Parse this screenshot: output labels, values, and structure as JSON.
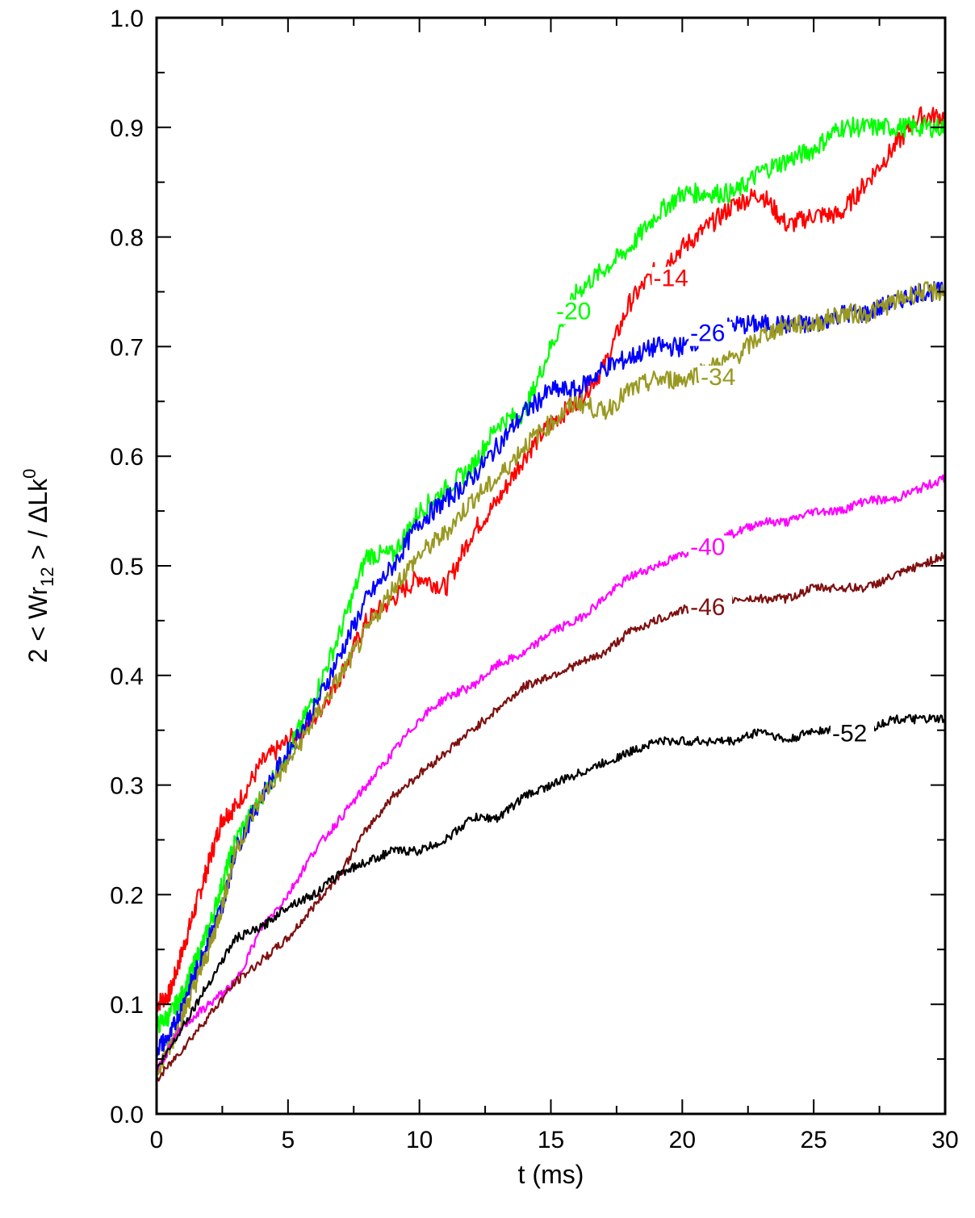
{
  "chart_data": {
    "type": "line",
    "xlabel": "t  (ms)",
    "ylabel": {
      "main": "2 < Wr",
      "subscript": "12",
      "after": " > / ΔLk",
      "superscript": "0"
    },
    "xlim": [
      0,
      30
    ],
    "ylim": [
      0,
      1
    ],
    "x_ticks": [
      0,
      5,
      10,
      15,
      20,
      25,
      30
    ],
    "y_ticks": [
      0.0,
      0.1,
      0.2,
      0.3,
      0.4,
      0.5,
      0.6,
      0.7,
      0.8,
      0.9,
      1.0
    ],
    "x_tick_labels": [
      "0",
      "5",
      "10",
      "15",
      "20",
      "25",
      "30"
    ],
    "y_tick_labels": [
      "0.0",
      "0.1",
      "0.2",
      "0.3",
      "0.4",
      "0.5",
      "0.6",
      "0.7",
      "0.8",
      "0.9",
      "1.0"
    ],
    "grid": false,
    "series": [
      {
        "name": "-14",
        "color": "#ff0000",
        "x": [
          0,
          0.5,
          1,
          1.5,
          2,
          2.5,
          3,
          4,
          5,
          6,
          7,
          8,
          9,
          10,
          11,
          12,
          13,
          14,
          15,
          16,
          17,
          18,
          19,
          20,
          21,
          22,
          23,
          24,
          25,
          26,
          27,
          28,
          29,
          30
        ],
        "y": [
          0.1,
          0.11,
          0.15,
          0.19,
          0.23,
          0.27,
          0.28,
          0.32,
          0.34,
          0.36,
          0.4,
          0.45,
          0.47,
          0.49,
          0.48,
          0.53,
          0.56,
          0.6,
          0.63,
          0.65,
          0.68,
          0.74,
          0.77,
          0.79,
          0.81,
          0.83,
          0.84,
          0.81,
          0.82,
          0.82,
          0.85,
          0.88,
          0.91,
          0.91
        ]
      },
      {
        "name": "-20",
        "color": "#00ff00",
        "x": [
          0,
          0.5,
          1,
          1.5,
          2,
          2.5,
          3,
          4,
          5,
          6,
          7,
          8,
          9,
          10,
          11,
          12,
          13,
          14,
          15,
          16,
          17,
          18,
          19,
          20,
          21,
          22,
          23,
          24,
          25,
          26,
          27,
          28,
          29,
          30
        ],
        "y": [
          0.08,
          0.09,
          0.11,
          0.14,
          0.17,
          0.21,
          0.25,
          0.29,
          0.33,
          0.38,
          0.44,
          0.51,
          0.51,
          0.55,
          0.57,
          0.59,
          0.63,
          0.64,
          0.7,
          0.75,
          0.77,
          0.79,
          0.82,
          0.84,
          0.84,
          0.84,
          0.86,
          0.87,
          0.88,
          0.9,
          0.9,
          0.9,
          0.9,
          0.9
        ]
      },
      {
        "name": "-26",
        "color": "#0000ff",
        "x": [
          0,
          0.5,
          1,
          1.5,
          2,
          2.5,
          3,
          4,
          5,
          6,
          7,
          8,
          9,
          10,
          11,
          12,
          13,
          14,
          15,
          16,
          17,
          18,
          19,
          20,
          21,
          22,
          23,
          24,
          25,
          26,
          27,
          28,
          29,
          30
        ],
        "y": [
          0.06,
          0.07,
          0.1,
          0.13,
          0.16,
          0.19,
          0.24,
          0.29,
          0.33,
          0.37,
          0.42,
          0.47,
          0.5,
          0.54,
          0.56,
          0.58,
          0.61,
          0.64,
          0.66,
          0.66,
          0.68,
          0.69,
          0.7,
          0.7,
          0.71,
          0.72,
          0.72,
          0.72,
          0.72,
          0.73,
          0.73,
          0.74,
          0.75,
          0.75
        ]
      },
      {
        "name": "-34",
        "color": "#999922",
        "x": [
          0,
          0.5,
          1,
          1.5,
          2,
          2.5,
          3,
          4,
          5,
          6,
          7,
          8,
          9,
          10,
          11,
          12,
          13,
          14,
          15,
          16,
          17,
          18,
          19,
          20,
          21,
          22,
          23,
          24,
          25,
          26,
          27,
          28,
          29,
          30
        ],
        "y": [
          0.04,
          0.06,
          0.09,
          0.12,
          0.15,
          0.19,
          0.24,
          0.29,
          0.32,
          0.36,
          0.4,
          0.44,
          0.48,
          0.51,
          0.53,
          0.56,
          0.58,
          0.61,
          0.63,
          0.65,
          0.64,
          0.66,
          0.67,
          0.67,
          0.68,
          0.69,
          0.71,
          0.72,
          0.72,
          0.73,
          0.73,
          0.74,
          0.75,
          0.75
        ]
      },
      {
        "name": "-40",
        "color": "#ff00ff",
        "x": [
          0,
          1,
          2,
          3,
          4,
          5,
          6,
          7,
          8,
          9,
          10,
          11,
          12,
          13,
          14,
          15,
          16,
          17,
          18,
          19,
          20,
          21,
          22,
          23,
          24,
          25,
          26,
          27,
          28,
          29,
          30
        ],
        "y": [
          0.04,
          0.08,
          0.1,
          0.12,
          0.17,
          0.2,
          0.24,
          0.27,
          0.3,
          0.33,
          0.36,
          0.38,
          0.39,
          0.41,
          0.42,
          0.44,
          0.45,
          0.47,
          0.49,
          0.5,
          0.51,
          0.52,
          0.53,
          0.54,
          0.54,
          0.55,
          0.55,
          0.56,
          0.56,
          0.57,
          0.58
        ]
      },
      {
        "name": "-46",
        "color": "#7f1010",
        "x": [
          0,
          1,
          2,
          3,
          4,
          5,
          6,
          7,
          8,
          9,
          10,
          11,
          12,
          13,
          14,
          15,
          16,
          17,
          18,
          19,
          20,
          21,
          22,
          23,
          24,
          25,
          26,
          27,
          28,
          29,
          30
        ],
        "y": [
          0.03,
          0.06,
          0.09,
          0.12,
          0.14,
          0.16,
          0.19,
          0.22,
          0.26,
          0.29,
          0.31,
          0.33,
          0.35,
          0.37,
          0.39,
          0.4,
          0.41,
          0.42,
          0.44,
          0.45,
          0.46,
          0.46,
          0.47,
          0.47,
          0.47,
          0.48,
          0.48,
          0.48,
          0.49,
          0.5,
          0.51
        ]
      },
      {
        "name": "-52",
        "color": "#000000",
        "x": [
          0,
          1,
          2,
          3,
          4,
          5,
          6,
          7,
          8,
          9,
          10,
          11,
          12,
          13,
          14,
          15,
          16,
          17,
          18,
          19,
          20,
          21,
          22,
          23,
          24,
          25,
          26,
          27,
          28,
          29,
          30
        ],
        "y": [
          0.04,
          0.08,
          0.12,
          0.16,
          0.17,
          0.19,
          0.2,
          0.22,
          0.23,
          0.24,
          0.24,
          0.25,
          0.27,
          0.27,
          0.29,
          0.3,
          0.31,
          0.32,
          0.33,
          0.34,
          0.34,
          0.34,
          0.34,
          0.35,
          0.34,
          0.35,
          0.35,
          0.35,
          0.36,
          0.36,
          0.36
        ]
      }
    ],
    "annotations": [
      {
        "text": "-14",
        "color": "#ff0000",
        "x": 18.9,
        "y": 0.755
      },
      {
        "text": "-20",
        "color": "#00ff00",
        "x": 15.2,
        "y": 0.725
      },
      {
        "text": "-26",
        "color": "#0000ff",
        "x": 20.3,
        "y": 0.705
      },
      {
        "text": "-34",
        "color": "#999922",
        "x": 20.7,
        "y": 0.665
      },
      {
        "text": "-40",
        "color": "#ff00ff",
        "x": 20.3,
        "y": 0.51
      },
      {
        "text": "-46",
        "color": "#7f1010",
        "x": 20.3,
        "y": 0.455
      },
      {
        "text": "-52",
        "color": "#000000",
        "x": 25.7,
        "y": 0.34
      }
    ]
  }
}
